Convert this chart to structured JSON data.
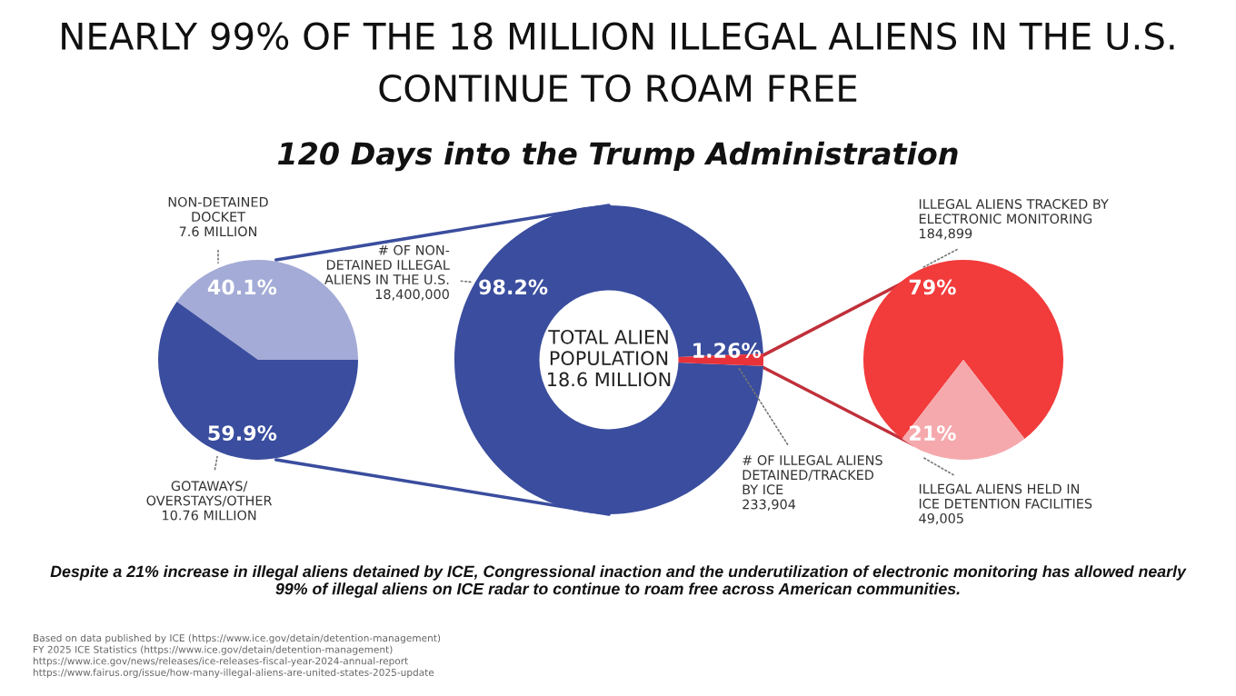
{
  "chart_data": [
    {
      "type": "pie",
      "title": "NEARLY 99% OF THE 18 MILLION ILLEGAL ALIENS IN THE U.S.\nCONTINUE TO ROAM FREE",
      "subtitle": "120 Days into the Trump Administration",
      "categories": [
        "NON-DETAINED\nDOCKET\n7.6 MILLION",
        "GOTAWAYS/\nOVERSTAYS/OTHER\n10.76 MILLION"
      ],
      "values": [
        40.1,
        59.9
      ],
      "colors": [
        "#a3abd6",
        "#3a4d9e"
      ],
      "value_labels": [
        "40.1%",
        "59.9%"
      ],
      "annotations": [
        "Despite a 21% increase in illegal aliens detained by ICE, Congressional inaction and the underutilization of electronic monitoring has allowed nearly\n99% of illegal aliens on ICE radar to continue to roam free across American communities.",
        "Based on data published by ICE (https://www.ice.gov/detain/detention-management)\nFY 2025 ICE Statistics (https://www.ice.gov/detain/detention-management)\nhttps://www.ice.gov/news/releases/ice-releases-fiscal-year-2024-annual-report\nhttps://www.fairus.org/issue/how-many-illegal-aliens-are-united-states-2025-update"
      ]
    },
    {
      "type": "donut",
      "categories": [
        "# OF NON-\nDETAINED ILLEGAL\nALIENS IN THE U.S.\n18,400,000",
        "# OF ILLEGAL ALIENS\nDETAINED/TRACKED\nBY ICE\n233,904"
      ],
      "values": [
        98.2,
        1.26
      ],
      "colors": [
        "#3a4d9e",
        "#e8323a"
      ],
      "value_labels": [
        "98.2%",
        "1.26%"
      ],
      "annotations": [
        "TOTAL ALIEN\nPOPULATION\n18.6 MILLION"
      ]
    },
    {
      "type": "pie",
      "categories": [
        "ILLEGAL ALIENS TRACKED BY\nELECTRONIC MONITORING\n184,899",
        "ILLEGAL ALIENS HELD IN\nICE DETENTION FACILITIES\n49,005"
      ],
      "values": [
        79,
        21
      ],
      "colors": [
        "#f23b3b",
        "#f5a9ad"
      ],
      "value_labels": [
        "79%",
        "21%"
      ]
    }
  ]
}
